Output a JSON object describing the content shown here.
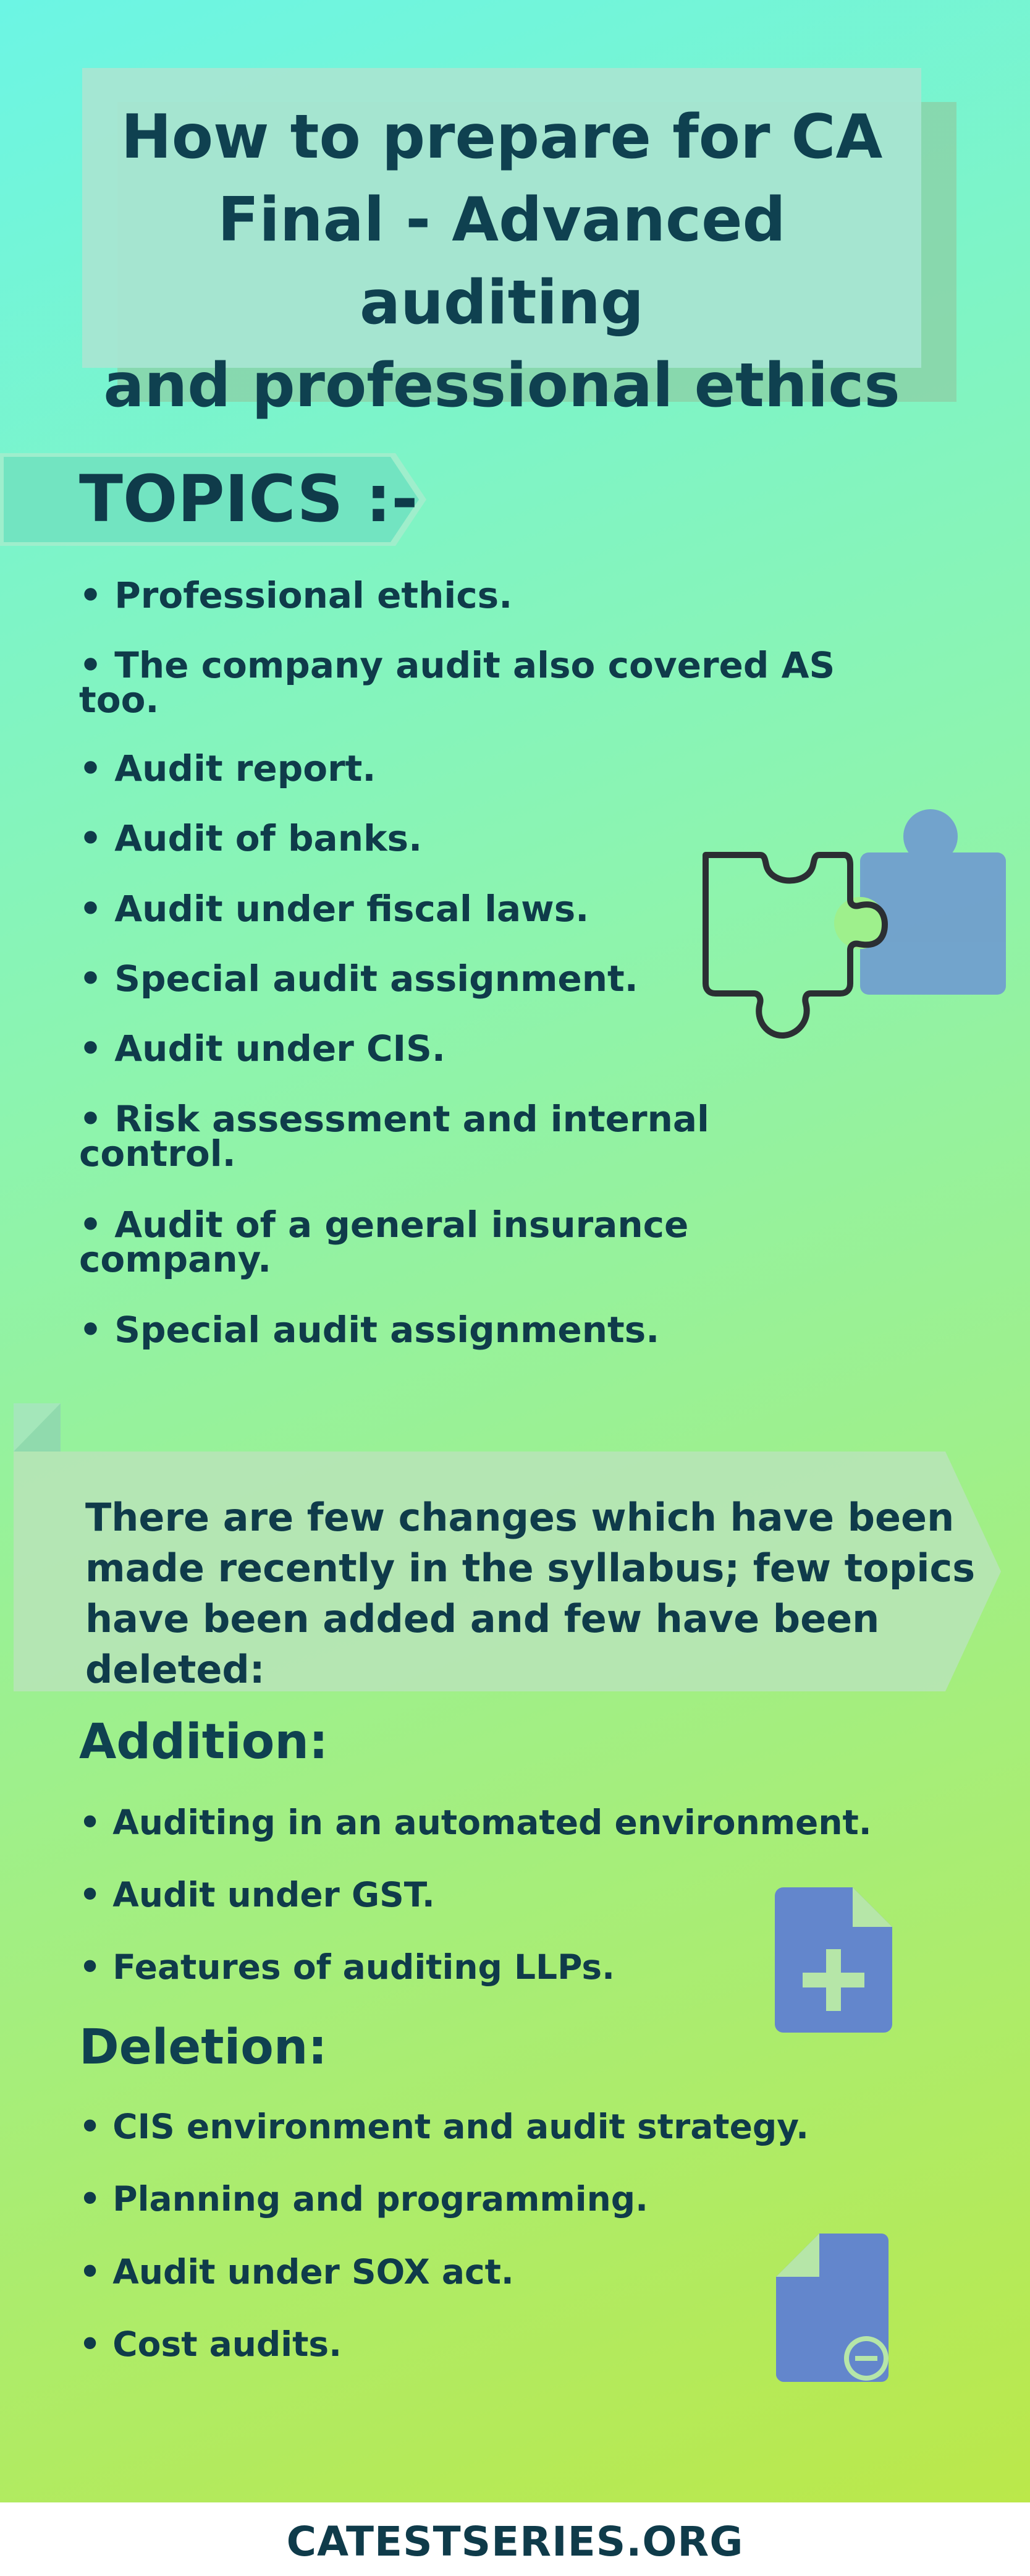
{
  "title": {
    "line1": "How to prepare for CA",
    "line2": "Final - Advanced auditing",
    "line3": "and professional ethics"
  },
  "topics": {
    "label": "TOPICS :-",
    "items": [
      {
        "line1": "• Professional ethics.",
        "line2": ""
      },
      {
        "line1": "• The company audit also covered AS",
        "line2": "too."
      },
      {
        "line1": "• Audit report.",
        "line2": ""
      },
      {
        "line1": "• Audit of banks.",
        "line2": ""
      },
      {
        "line1": "• Audit under fiscal laws.",
        "line2": ""
      },
      {
        "line1": "• Special audit assignment.",
        "line2": ""
      },
      {
        "line1": "• Audit under CIS.",
        "line2": ""
      },
      {
        "line1": "• Risk assessment and internal",
        "line2": "control."
      },
      {
        "line1": "• Audit of a general insurance",
        "line2": "company."
      },
      {
        "line1": "• Special audit assignments.",
        "line2": ""
      }
    ]
  },
  "changes": {
    "line1": "There are few changes which have been",
    "line2": "made recently in the syllabus; few topics",
    "line3": "have been added and few have been deleted:"
  },
  "addition": {
    "heading": "Addition:",
    "items": [
      "• Auditing in an automated environment.",
      "• Audit under GST.",
      "• Features of auditing LLPs."
    ]
  },
  "deletion": {
    "heading": "Deletion:",
    "items": [
      "• CIS environment and audit strategy.",
      "• Planning and programming.",
      "• Audit under SOX act.",
      "• Cost audits."
    ]
  },
  "icons": {
    "puzzle": "puzzle-pieces-icon",
    "add_file": "file-plus-icon",
    "remove_file": "file-minus-icon",
    "icon_color": "#6f9bd0",
    "outline_color": "#2b2f33"
  },
  "footer": {
    "text": "CATESTSERIES.ORG"
  }
}
